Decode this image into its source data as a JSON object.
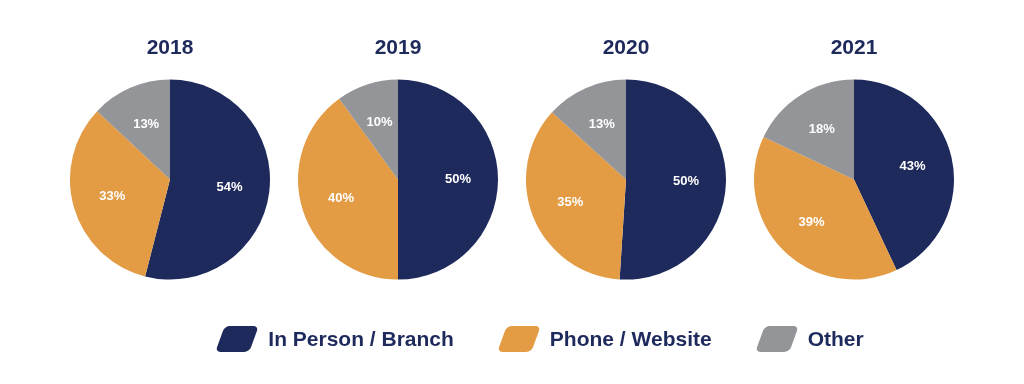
{
  "chart_data": [
    {
      "type": "pie",
      "title": "2018",
      "categories": [
        "In Person / Branch",
        "Phone / Website",
        "Other"
      ],
      "values": [
        54,
        33,
        13
      ],
      "value_labels": [
        "54%",
        "33%",
        "13%"
      ],
      "colors": [
        "#1f2a5c",
        "#e39b44",
        "#939598"
      ],
      "legend": "bottom"
    },
    {
      "type": "pie",
      "title": "2019",
      "categories": [
        null,
        null,
        null
      ],
      "values": [
        50,
        40,
        10
      ],
      "value_labels": [
        "50%",
        "40%",
        "10%"
      ],
      "colors": [
        "#1f2a5c",
        "#e39b44",
        "#939598"
      ]
    },
    {
      "type": "pie",
      "title": "2020",
      "categories": [
        null,
        null,
        null
      ],
      "values": [
        50,
        35,
        13
      ],
      "value_labels": [
        "50%",
        "35%",
        "13%"
      ],
      "colors": [
        "#1f2a5c",
        "#e39b44",
        "#939598"
      ]
    },
    {
      "type": "pie",
      "title": "2021",
      "categories": [
        null,
        null,
        null
      ],
      "values": [
        43,
        39,
        18
      ],
      "value_labels": [
        "43%",
        "39%",
        "18%"
      ],
      "colors": [
        "#1f2a5c",
        "#e39b44",
        "#939598"
      ]
    }
  ]
}
